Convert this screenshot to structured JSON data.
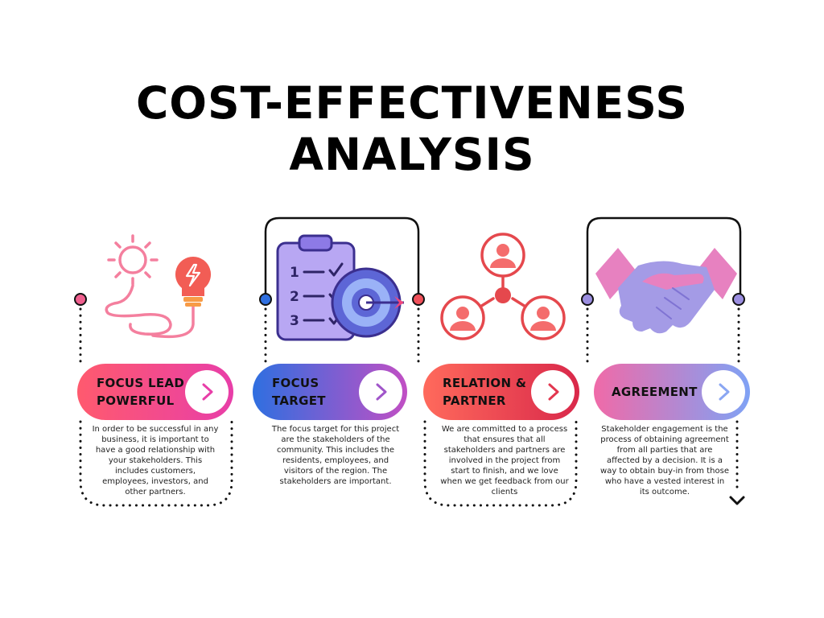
{
  "title": {
    "line1": "COST-EFFECTIVENESS",
    "line2": "ANALYSIS"
  },
  "steps": [
    {
      "label_line1": "FOCUS LEAD",
      "label_line2": "POWERFUL",
      "description": "In order to be successful in any business, it is important to have a good relationship with your stakeholders. This includes customers, employees, investors, and other partners.",
      "icon": "lightbulb-sun-icon",
      "colors": {
        "start": "#ff5a6e",
        "end": "#e83ea8",
        "arrow": "#e83ea8"
      }
    },
    {
      "label_line1": "FOCUS",
      "label_line2": "TARGET",
      "description": "The focus target for this project are the stakeholders of the community. This includes the residents, employees, and visitors of the region. The stakeholders are important.",
      "icon": "clipboard-target-icon",
      "colors": {
        "start": "#2f6fe0",
        "end": "#c14fc4",
        "arrow": "#a055c9"
      }
    },
    {
      "label_line1": "RELATION &",
      "label_line2": "PARTNER",
      "description": "We are committed to a process that ensures that all stakeholders and partners are involved in the project from start to finish, and we love when we get feedback from our clients",
      "icon": "network-people-icon",
      "colors": {
        "start": "#ff6a5c",
        "end": "#d9284a",
        "arrow": "#e2374f"
      }
    },
    {
      "label_line1": "AGREEMENT",
      "label_line2": "",
      "description": "Stakeholder engagement is the process of obtaining agreement from all parties that are affected by a decision. It is a way to obtain buy-in from those who have a vested interest in its outcome.",
      "icon": "handshake-icon",
      "colors": {
        "start": "#f06aa8",
        "end": "#7fa2f5",
        "arrow": "#8aa6f2"
      }
    }
  ]
}
